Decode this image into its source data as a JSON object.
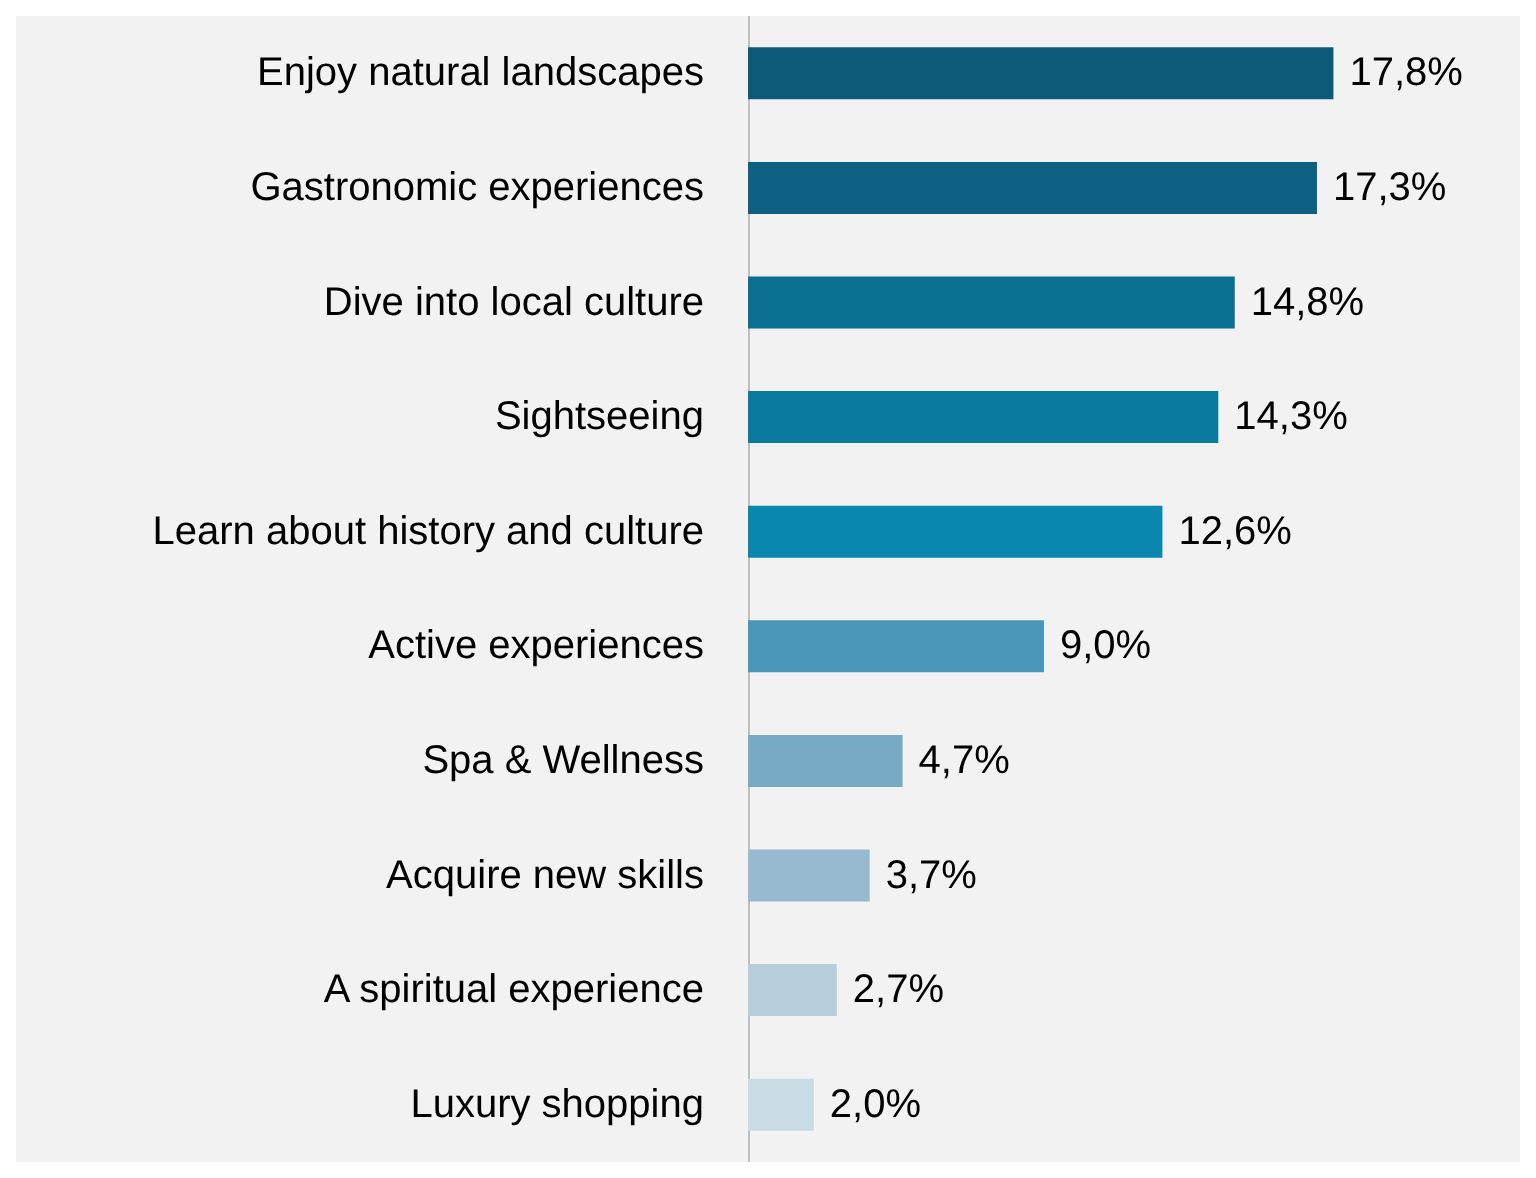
{
  "chart_data": {
    "type": "bar",
    "orientation": "horizontal",
    "categories": [
      "Enjoy natural landscapes",
      "Gastronomic experiences",
      "Dive into local culture",
      "Sightseeing",
      "Learn about history and culture",
      "Active experiences",
      "Spa & Wellness",
      "Acquire new skills",
      "A spiritual experience",
      "Luxury shopping"
    ],
    "values": [
      17.8,
      17.3,
      14.8,
      14.3,
      12.6,
      9.0,
      4.7,
      3.7,
      2.7,
      2.0
    ],
    "value_labels": [
      "17,8%",
      "17,3%",
      "14,8%",
      "14,3%",
      "12,6%",
      "9,0%",
      "4,7%",
      "3,7%",
      "2,7%",
      "2,0%"
    ],
    "colors": [
      "#0c5a78",
      "#0d6082",
      "#0b6f91",
      "#0a7b9e",
      "#0987ae",
      "#4a97b9",
      "#78aac5",
      "#97bad0",
      "#b7cfdd",
      "#c9dce6"
    ]
  }
}
